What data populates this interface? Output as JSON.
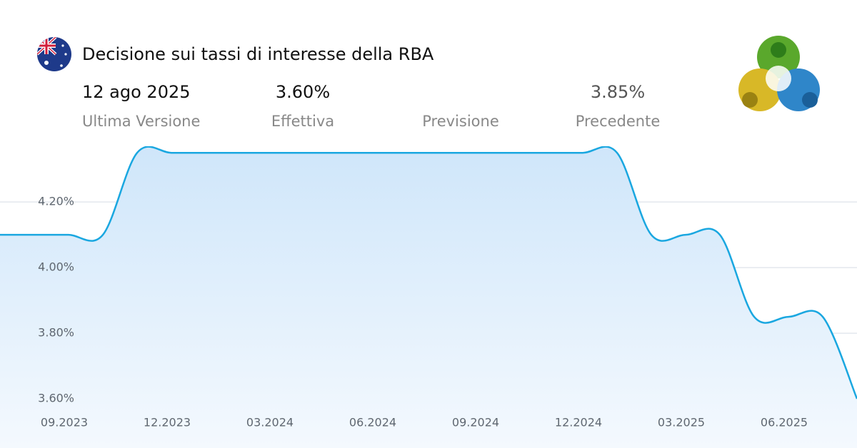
{
  "header": {
    "title": "Decisione sui tassi di interesse della RBA",
    "date": "12 ago 2025",
    "date_label": "Ultima Versione",
    "actual": "3.60%",
    "actual_label": "Effettiva",
    "forecast_label": "Previsione",
    "previous": "3.85%",
    "previous_label": "Precedente"
  },
  "chart_data": {
    "type": "line",
    "x": [
      "2023-07",
      "2023-08",
      "2023-09",
      "2023-10",
      "2023-11",
      "2023-12",
      "2024-01",
      "2024-02",
      "2024-03",
      "2024-04",
      "2024-05",
      "2024-06",
      "2024-07",
      "2024-08",
      "2024-09",
      "2024-10",
      "2024-11",
      "2024-12",
      "2025-01",
      "2025-02",
      "2025-03",
      "2025-04",
      "2025-05",
      "2025-06",
      "2025-07",
      "2025-08"
    ],
    "series": [
      {
        "name": "RBA",
        "color": "#1aa7e0",
        "values": [
          4.1,
          4.1,
          4.1,
          4.1,
          4.35,
          4.35,
          4.35,
          4.35,
          4.35,
          4.35,
          4.35,
          4.35,
          4.35,
          4.35,
          4.35,
          4.35,
          4.35,
          4.35,
          4.35,
          4.1,
          4.1,
          4.1,
          3.85,
          3.85,
          3.85,
          3.6
        ]
      }
    ],
    "xlim": [
      "2023-07",
      "2025-08"
    ],
    "xticks": [
      {
        "value": "2023-09",
        "label": "09.2023"
      },
      {
        "value": "2023-12",
        "label": "12.2023"
      },
      {
        "value": "2024-03",
        "label": "03.2024"
      },
      {
        "value": "2024-06",
        "label": "06.2024"
      },
      {
        "value": "2024-09",
        "label": "09.2024"
      },
      {
        "value": "2024-12",
        "label": "12.2024"
      },
      {
        "value": "2025-03",
        "label": "03.2025"
      },
      {
        "value": "2025-06",
        "label": "06.2025"
      }
    ],
    "ylim": [
      3.45,
      4.37
    ],
    "yticks": [
      {
        "value": 3.6,
        "label": "3.60%"
      },
      {
        "value": 3.8,
        "label": "3.80%"
      },
      {
        "value": 4.0,
        "label": "4.00%"
      },
      {
        "value": 4.2,
        "label": "4.20%"
      }
    ],
    "grid": true
  }
}
